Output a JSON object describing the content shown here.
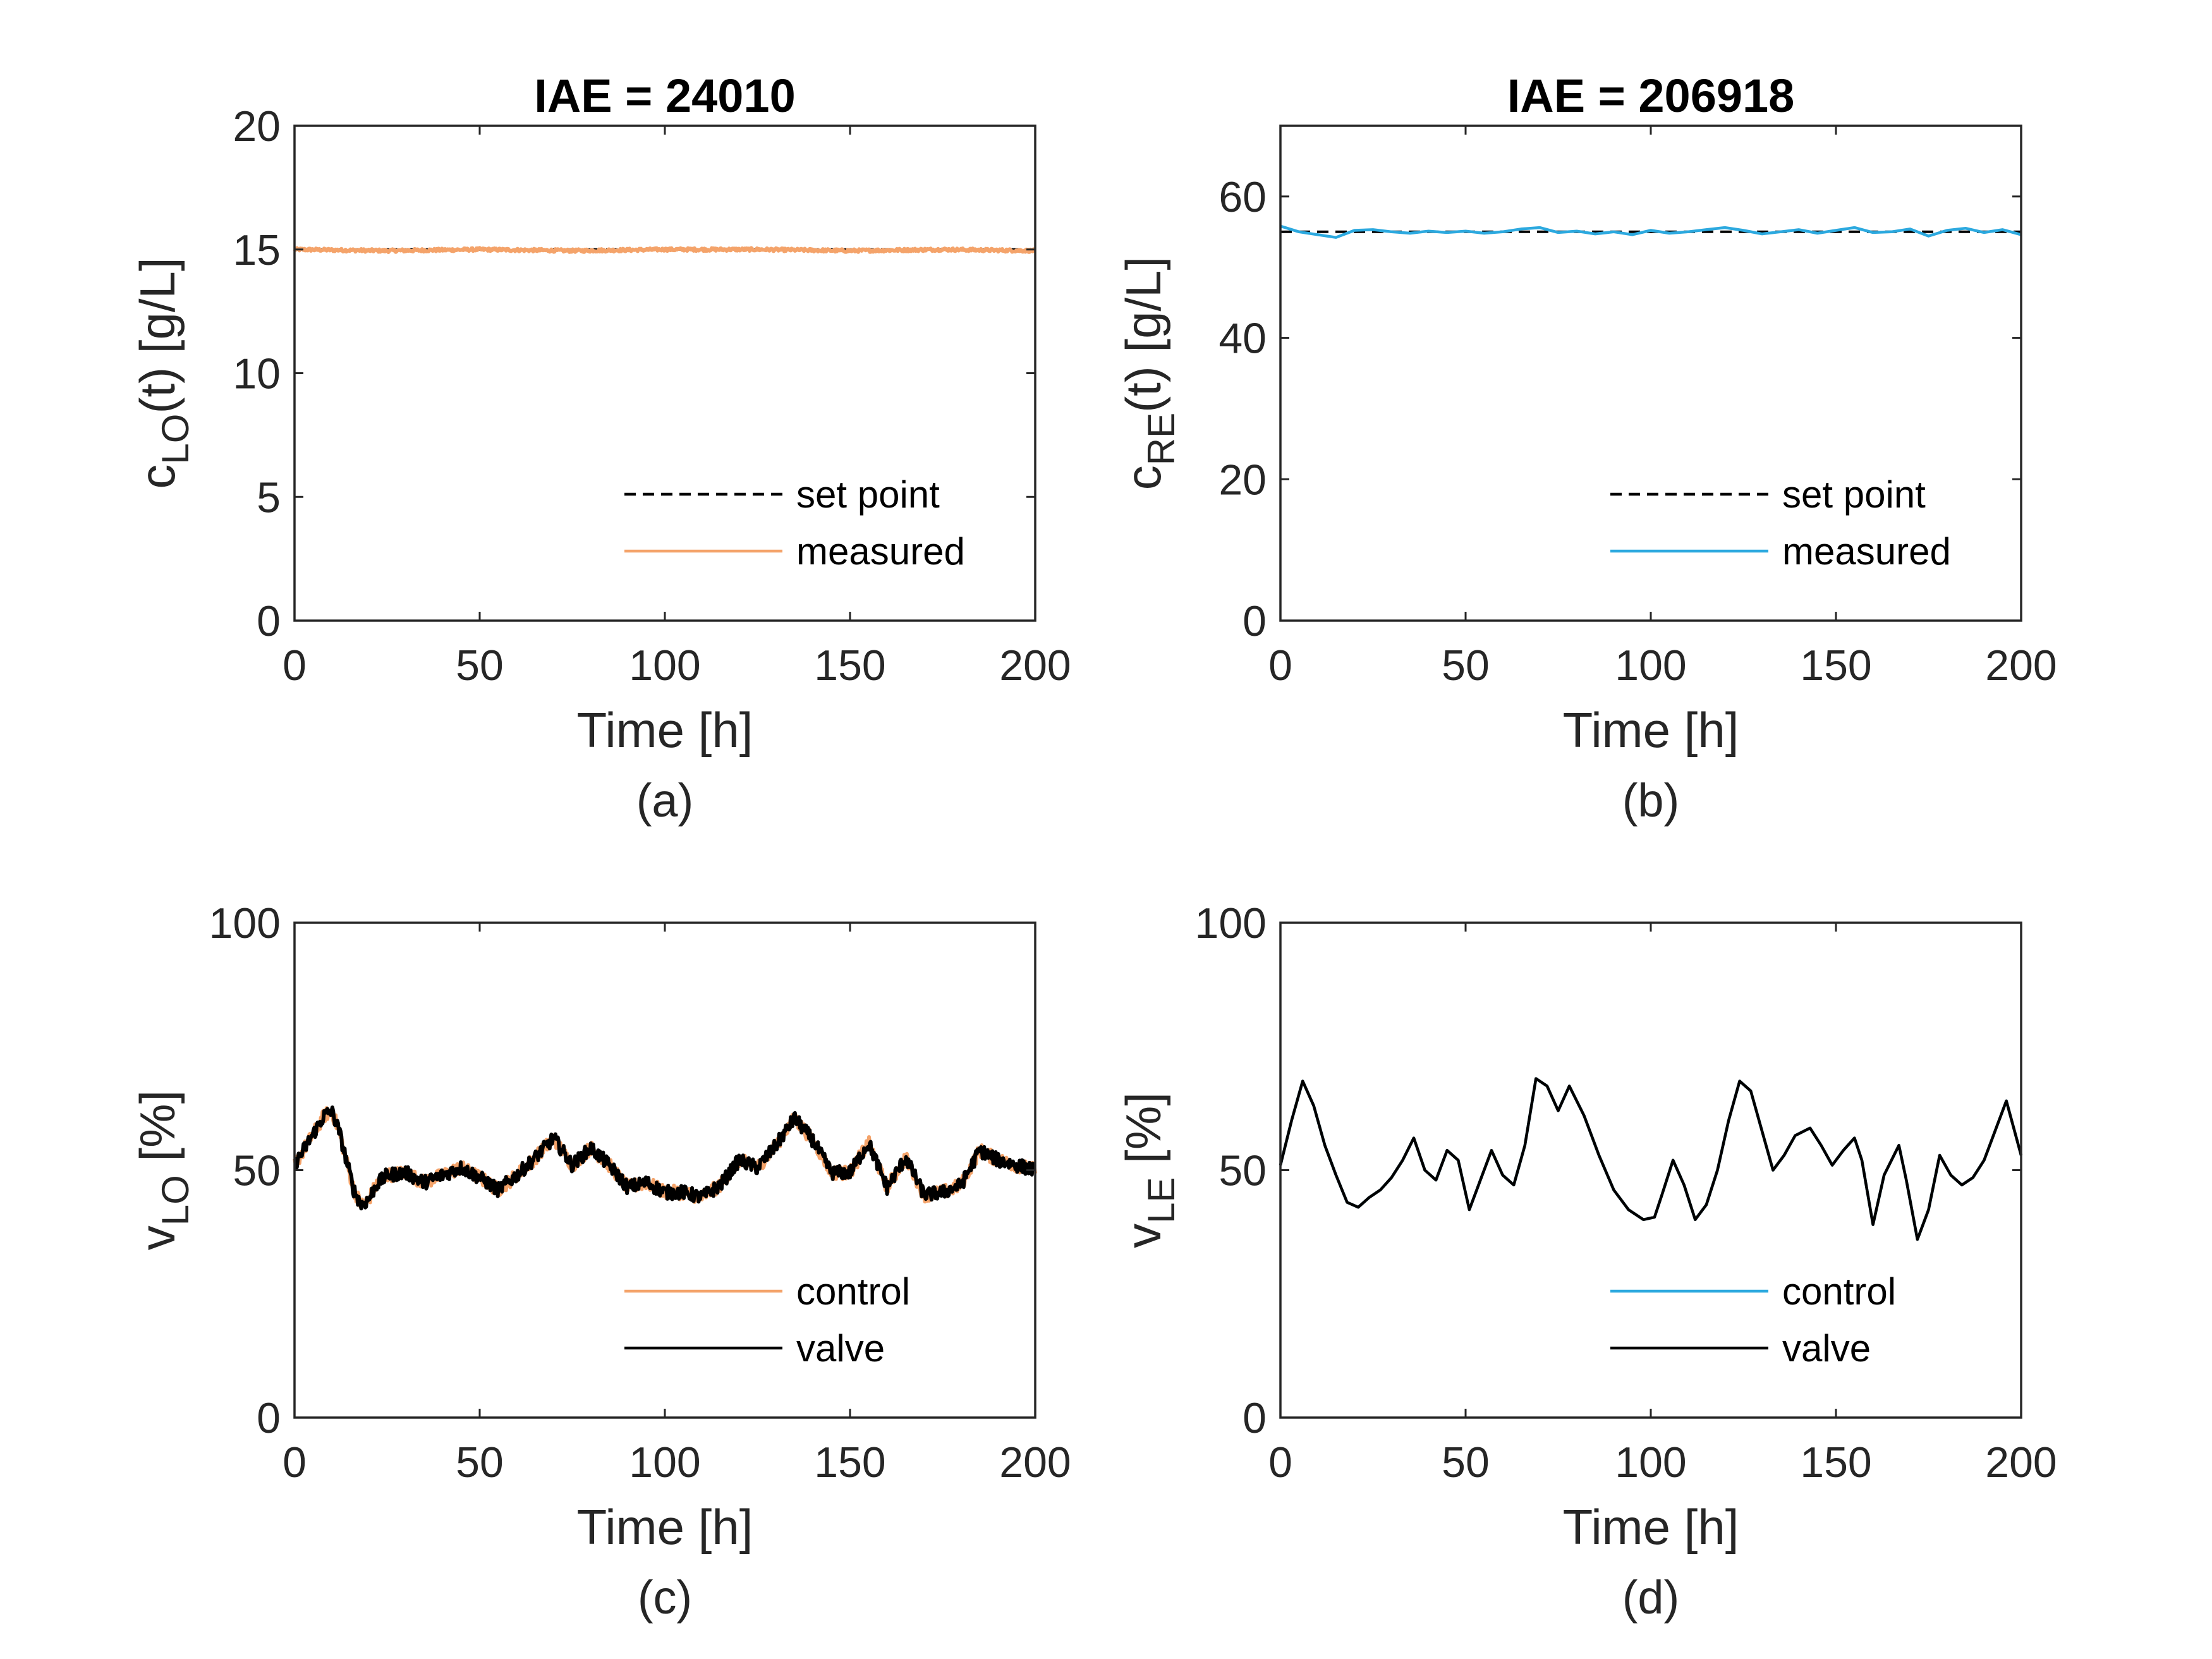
{
  "colors": {
    "orange": "#F4A36A",
    "blue": "#2CA9DF",
    "black": "#000000",
    "axis": "#262626"
  },
  "chart_data": [
    {
      "panel": "a",
      "type": "line",
      "title": "IAE = 24010",
      "caption": "(a)",
      "xlabel": "Time [h]",
      "ylabel": {
        "main": "c",
        "sub": "LO",
        "rest": "(t) [g/L]"
      },
      "xlim": [
        0,
        200
      ],
      "ylim": [
        0,
        20
      ],
      "xticks": [
        0,
        50,
        100,
        150,
        200
      ],
      "yticks": [
        0,
        5,
        10,
        15,
        20
      ],
      "legend_position": "bottom-right",
      "noise": 0.06,
      "series": [
        {
          "name": "set point",
          "style": "dashed",
          "color": "#000000",
          "x": [
            0,
            200
          ],
          "y": [
            15,
            15
          ]
        },
        {
          "name": "measured",
          "style": "solid",
          "color": "#F4A36A",
          "x": [
            0,
            25,
            50,
            75,
            100,
            125,
            150,
            175,
            200
          ],
          "y": [
            15.0,
            14.95,
            15.0,
            14.95,
            15.0,
            15.0,
            14.95,
            15.0,
            14.95
          ]
        }
      ]
    },
    {
      "panel": "b",
      "type": "line",
      "title": "IAE = 206918",
      "caption": "(b)",
      "xlabel": "Time [h]",
      "ylabel": {
        "main": "c",
        "sub": "RE",
        "rest": "(t) [g/L]"
      },
      "xlim": [
        0,
        200
      ],
      "ylim": [
        0,
        70
      ],
      "xticks": [
        0,
        50,
        100,
        150,
        200
      ],
      "yticks": [
        0,
        20,
        40,
        60
      ],
      "legend_position": "bottom-right",
      "noise": 0,
      "series": [
        {
          "name": "set point",
          "style": "dashed",
          "color": "#000000",
          "x": [
            0,
            200
          ],
          "y": [
            55,
            55
          ]
        },
        {
          "name": "measured",
          "style": "solid",
          "color": "#2CA9DF",
          "x": [
            0,
            5,
            10,
            15,
            20,
            25,
            30,
            35,
            40,
            45,
            50,
            55,
            60,
            65,
            70,
            75,
            80,
            85,
            90,
            95,
            100,
            105,
            110,
            115,
            120,
            125,
            130,
            135,
            140,
            145,
            150,
            155,
            160,
            165,
            170,
            175,
            180,
            185,
            190,
            195,
            200
          ],
          "y": [
            55.8,
            55.0,
            54.6,
            54.2,
            55.2,
            55.3,
            55.0,
            54.8,
            55.1,
            54.9,
            55.1,
            54.8,
            55.0,
            55.4,
            55.6,
            54.9,
            55.1,
            54.7,
            55.0,
            54.6,
            55.2,
            54.8,
            55.0,
            55.3,
            55.6,
            55.2,
            54.7,
            55.0,
            55.3,
            54.8,
            55.2,
            55.6,
            54.9,
            55.0,
            55.4,
            54.4,
            55.2,
            55.5,
            54.9,
            55.3,
            54.6
          ]
        }
      ]
    },
    {
      "panel": "c",
      "type": "line",
      "title": "",
      "caption": "(c)",
      "xlabel": "Time [h]",
      "ylabel": {
        "main": "v",
        "sub": "LO",
        "rest": " [%]"
      },
      "xlim": [
        0,
        200
      ],
      "ylim": [
        0,
        100
      ],
      "xticks": [
        0,
        50,
        100,
        150,
        200
      ],
      "yticks": [
        0,
        50,
        100
      ],
      "legend_position": "bottom-right",
      "noise": 1.4,
      "series": [
        {
          "name": "control",
          "style": "solid",
          "color": "#F4A36A",
          "x": [
            0,
            4,
            8,
            10,
            12,
            14,
            16,
            18,
            20,
            22,
            25,
            30,
            35,
            40,
            45,
            50,
            55,
            60,
            65,
            70,
            75,
            80,
            85,
            90,
            95,
            100,
            105,
            110,
            115,
            120,
            125,
            130,
            135,
            140,
            145,
            150,
            155,
            160,
            165,
            170,
            175,
            180,
            185,
            190,
            195,
            200
          ],
          "y": [
            51,
            56,
            61,
            62,
            58,
            52,
            46,
            43,
            44,
            47,
            49,
            49.5,
            47.5,
            49,
            50.5,
            48.5,
            46,
            49,
            52.5,
            56.5,
            51,
            54.5,
            51,
            46.5,
            47.5,
            45.5,
            45.5,
            44.5,
            47,
            52,
            50.5,
            55,
            60.5,
            56,
            49.5,
            49.5,
            55.5,
            46.5,
            52.5,
            45,
            45.5,
            47,
            54,
            52,
            51,
            50
          ]
        },
        {
          "name": "valve",
          "style": "solid",
          "color": "#000000",
          "x": [
            0,
            4,
            8,
            10,
            12,
            14,
            16,
            18,
            20,
            22,
            25,
            30,
            35,
            40,
            45,
            50,
            55,
            60,
            65,
            70,
            75,
            80,
            85,
            90,
            95,
            100,
            105,
            110,
            115,
            120,
            125,
            130,
            135,
            140,
            145,
            150,
            155,
            160,
            165,
            170,
            175,
            180,
            185,
            190,
            195,
            200
          ],
          "y": [
            51,
            56,
            61,
            62,
            58,
            52,
            46,
            43,
            44,
            47,
            49,
            49.5,
            47.5,
            49,
            50.5,
            48.5,
            46,
            49,
            52.5,
            56.5,
            51,
            54.5,
            51,
            46.5,
            47.5,
            45.5,
            45.5,
            44.5,
            47,
            52,
            50.5,
            55,
            60.5,
            56,
            49.5,
            49.5,
            55.5,
            46.5,
            52.5,
            45,
            45.5,
            47,
            54,
            52,
            51,
            50
          ]
        }
      ]
    },
    {
      "panel": "d",
      "type": "line",
      "title": "",
      "caption": "(d)",
      "xlabel": "Time [h]",
      "ylabel": {
        "main": "v",
        "sub": "LE",
        "rest": " [%]"
      },
      "xlim": [
        0,
        200
      ],
      "ylim": [
        0,
        100
      ],
      "xticks": [
        0,
        50,
        100,
        150,
        200
      ],
      "yticks": [
        0,
        50,
        100
      ],
      "legend_position": "bottom-right",
      "noise": 0,
      "series": [
        {
          "name": "control",
          "style": "solid",
          "color": "#2CA9DF",
          "x": [
            0,
            3,
            6,
            9,
            12,
            15,
            18,
            21,
            24,
            27,
            30,
            33,
            36,
            39,
            42,
            45,
            48,
            51,
            54,
            57,
            60,
            63,
            66,
            69,
            72,
            75,
            78,
            82,
            86,
            90,
            94,
            98,
            101,
            103,
            106,
            109,
            112,
            115,
            118,
            121,
            124,
            127,
            130,
            133,
            136,
            139,
            143,
            146,
            149,
            152,
            155,
            157,
            160,
            163,
            167,
            169,
            172,
            175,
            178,
            181,
            184,
            187,
            190,
            193,
            196,
            200
          ],
          "y": [
            51,
            60,
            68,
            63,
            55,
            49,
            43.5,
            42.5,
            44.5,
            46,
            48.5,
            52,
            56.5,
            50,
            48,
            54,
            52,
            42,
            48,
            54,
            49,
            47,
            55,
            68.5,
            67,
            62,
            67,
            61,
            53,
            46,
            42,
            40,
            40.5,
            45,
            52,
            47,
            40,
            43,
            50,
            60,
            68,
            66,
            58,
            50,
            53,
            57,
            58.5,
            55,
            51,
            54,
            56.5,
            52,
            39,
            49,
            55,
            48,
            36,
            42,
            53,
            49,
            47,
            48.5,
            52,
            58,
            64,
            53
          ]
        },
        {
          "name": "valve",
          "style": "solid",
          "color": "#000000",
          "x": [
            0,
            3,
            6,
            9,
            12,
            15,
            18,
            21,
            24,
            27,
            30,
            33,
            36,
            39,
            42,
            45,
            48,
            51,
            54,
            57,
            60,
            63,
            66,
            69,
            72,
            75,
            78,
            82,
            86,
            90,
            94,
            98,
            101,
            103,
            106,
            109,
            112,
            115,
            118,
            121,
            124,
            127,
            130,
            133,
            136,
            139,
            143,
            146,
            149,
            152,
            155,
            157,
            160,
            163,
            167,
            169,
            172,
            175,
            178,
            181,
            184,
            187,
            190,
            193,
            196,
            200
          ],
          "y": [
            51,
            60,
            68,
            63,
            55,
            49,
            43.5,
            42.5,
            44.5,
            46,
            48.5,
            52,
            56.5,
            50,
            48,
            54,
            52,
            42,
            48,
            54,
            49,
            47,
            55,
            68.5,
            67,
            62,
            67,
            61,
            53,
            46,
            42,
            40,
            40.5,
            45,
            52,
            47,
            40,
            43,
            50,
            60,
            68,
            66,
            58,
            50,
            53,
            57,
            58.5,
            55,
            51,
            54,
            56.5,
            52,
            39,
            49,
            55,
            48,
            36,
            42,
            53,
            49,
            47,
            48.5,
            52,
            58,
            64,
            53
          ]
        }
      ]
    }
  ]
}
